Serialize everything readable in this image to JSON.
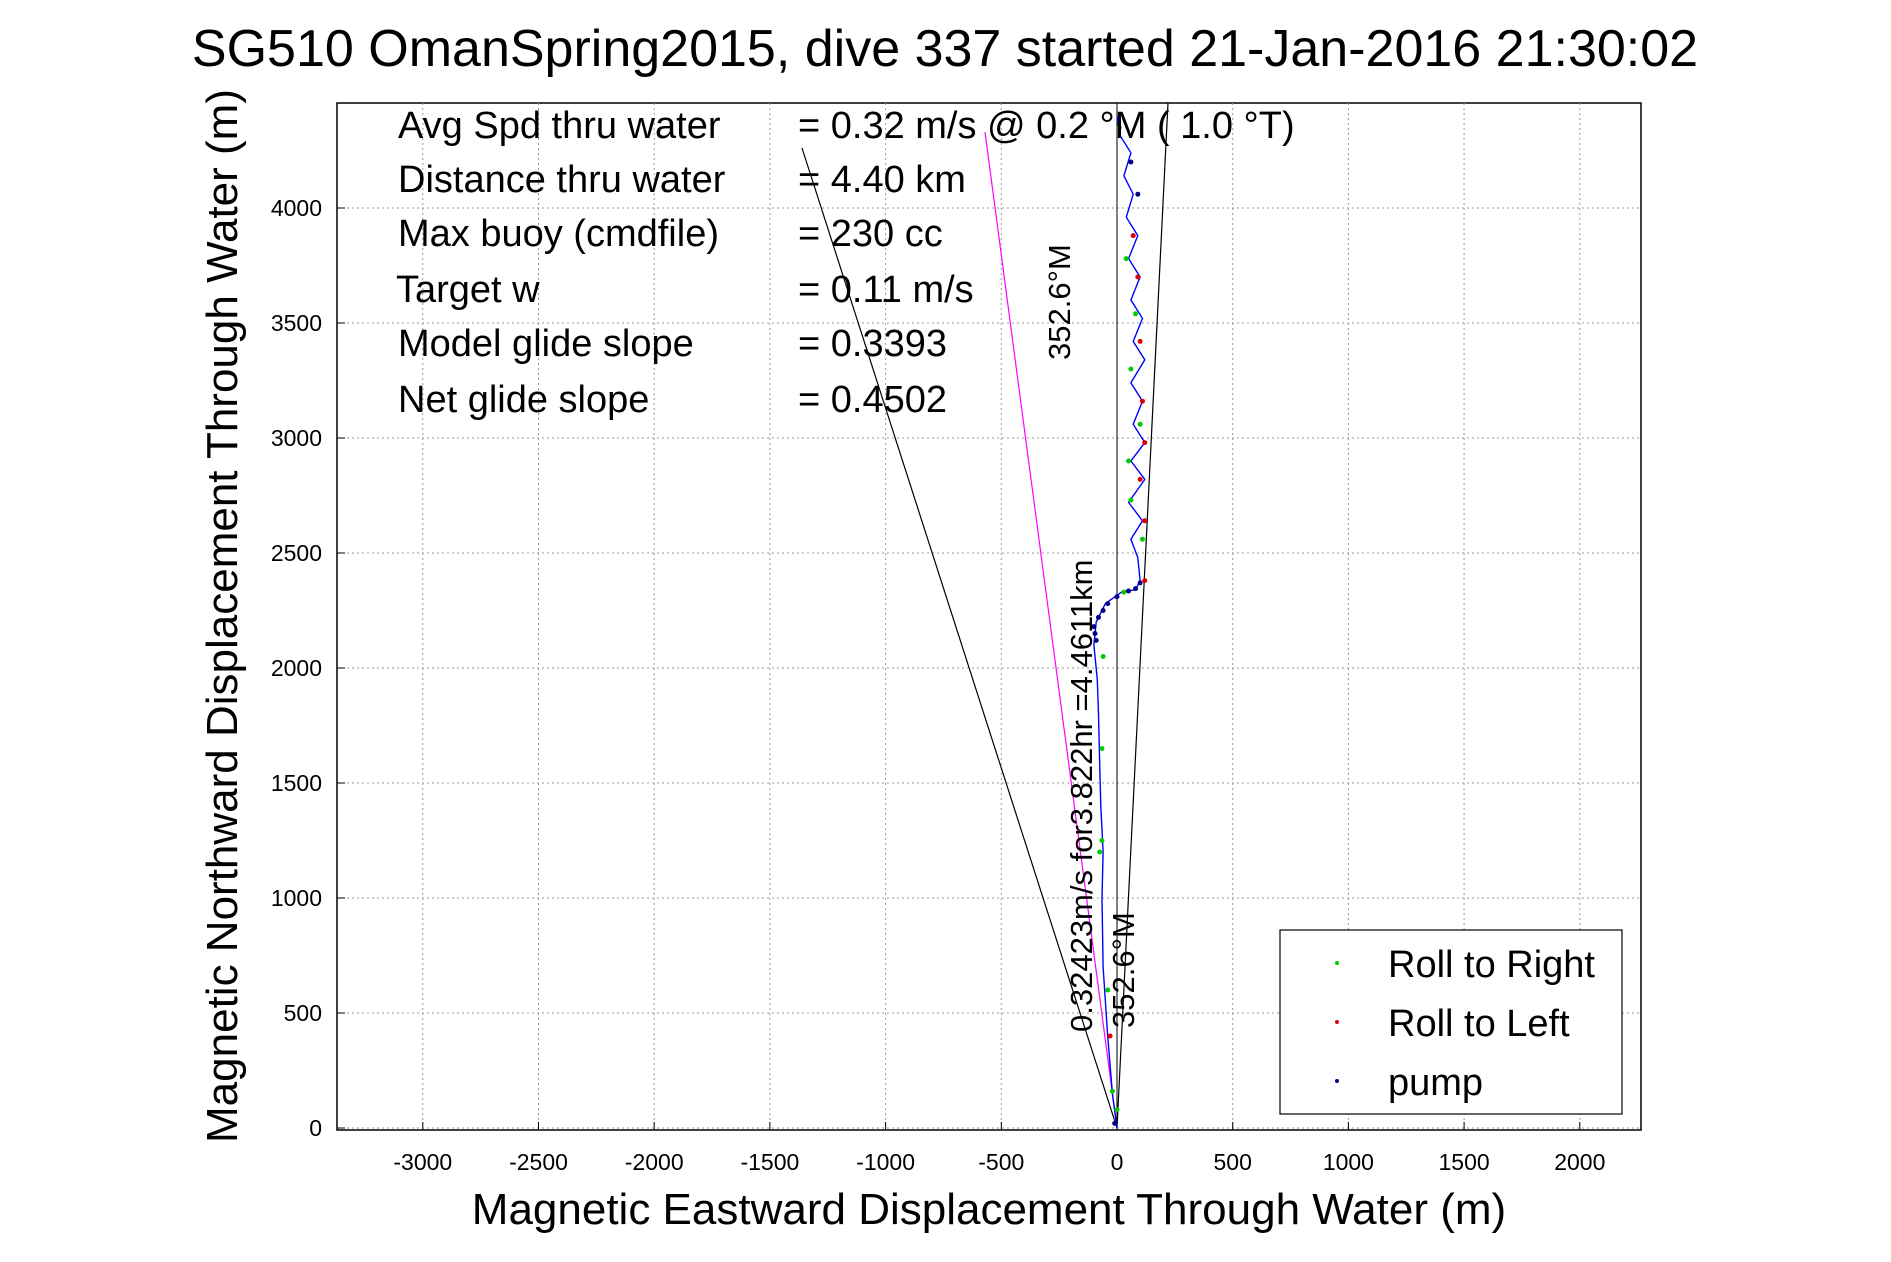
{
  "title": "SG510 OmanSpring2015, dive 337 started 21-Jan-2016 21:30:02",
  "axes": {
    "xlabel": "Magnetic Eastward Displacement Through Water (m)",
    "ylabel": "Magnetic Northward Displacement Through Water (m)",
    "x_ticks": [
      "-3000",
      "-2500",
      "-2000",
      "-1500",
      "-1000",
      "-500",
      "0",
      "500",
      "1000",
      "1500",
      "2000"
    ],
    "y_ticks": [
      "0",
      "500",
      "1000",
      "1500",
      "2000",
      "2500",
      "3000",
      "3500",
      "4000"
    ]
  },
  "info": {
    "rows": [
      {
        "label": "Avg Spd thru water",
        "value": "=  0.32 m/s @   0.2 °M (  1.0 °T)"
      },
      {
        "label": "Distance thru water",
        "value": "=  4.40 km"
      },
      {
        "label": "Max buoy (cmdfile)",
        "value": "= 230 cc"
      },
      {
        "label": "Target w",
        "value": "= 0.11 m/s"
      },
      {
        "label": "Model glide slope",
        "value": "= 0.3393"
      },
      {
        "label": "Net glide slope",
        "value": "= 0.4502"
      }
    ]
  },
  "annotations": {
    "heading_upper": "352.6°M",
    "mid_speed": "0.32423m/s for3.822hr =4.4611km",
    "heading_lower": "352.6°M"
  },
  "legend": {
    "position": "bottom-right",
    "entries": [
      {
        "label": "Roll to Right",
        "color": "#00cc00"
      },
      {
        "label": "Roll to Left",
        "color": "#dd0000"
      },
      {
        "label": "pump",
        "color": "#000080"
      }
    ]
  },
  "colors": {
    "track": "#0000ff",
    "heading_line": "#000000",
    "speed_line": "#ff00ff"
  },
  "chart_data": {
    "type": "line",
    "grid": true,
    "xlim": [
      -3400,
      2250
    ],
    "ylim": [
      0,
      4450
    ],
    "series": [
      {
        "name": "track",
        "x": [
          0,
          -20,
          -40,
          -60,
          -65,
          -60,
          -70,
          -75,
          -80,
          -85,
          -100,
          -90,
          -50,
          20,
          80,
          100,
          90,
          60,
          110,
          50,
          120,
          60,
          120,
          70,
          110,
          60,
          120,
          70,
          110,
          60,
          100,
          50,
          90,
          40,
          70,
          30,
          60,
          10,
          0
        ],
        "y": [
          0,
          150,
          400,
          700,
          1000,
          1200,
          1400,
          1600,
          1800,
          1950,
          2100,
          2200,
          2280,
          2330,
          2340,
          2380,
          2480,
          2560,
          2640,
          2720,
          2820,
          2900,
          2980,
          3060,
          3160,
          3240,
          3340,
          3420,
          3520,
          3600,
          3700,
          3780,
          3880,
          3960,
          4060,
          4140,
          4240,
          4320,
          4400
        ]
      },
      {
        "name": "Roll to Right",
        "x": [
          0,
          -20,
          -40,
          -65,
          -65,
          -75,
          -60,
          30,
          110,
          60,
          50,
          100,
          60,
          80,
          40,
          10
        ],
        "y": [
          80,
          160,
          600,
          1250,
          1650,
          1200,
          2050,
          2330,
          2560,
          2730,
          2900,
          3060,
          3300,
          3540,
          3780,
          4350
        ]
      },
      {
        "name": "Roll to Left",
        "x": [
          -30,
          120,
          120,
          100,
          120,
          110,
          100,
          90,
          70
        ],
        "y": [
          400,
          2380,
          2640,
          2820,
          2980,
          3160,
          3420,
          3700,
          3880
        ]
      },
      {
        "name": "pump",
        "x": [
          -10,
          -90,
          -95,
          -100,
          -80,
          -60,
          -40,
          0,
          50,
          80,
          100,
          90,
          60
        ],
        "y": [
          20,
          2120,
          2150,
          2180,
          2220,
          2250,
          2280,
          2310,
          2335,
          2345,
          2370,
          4060,
          4200
        ]
      }
    ]
  }
}
